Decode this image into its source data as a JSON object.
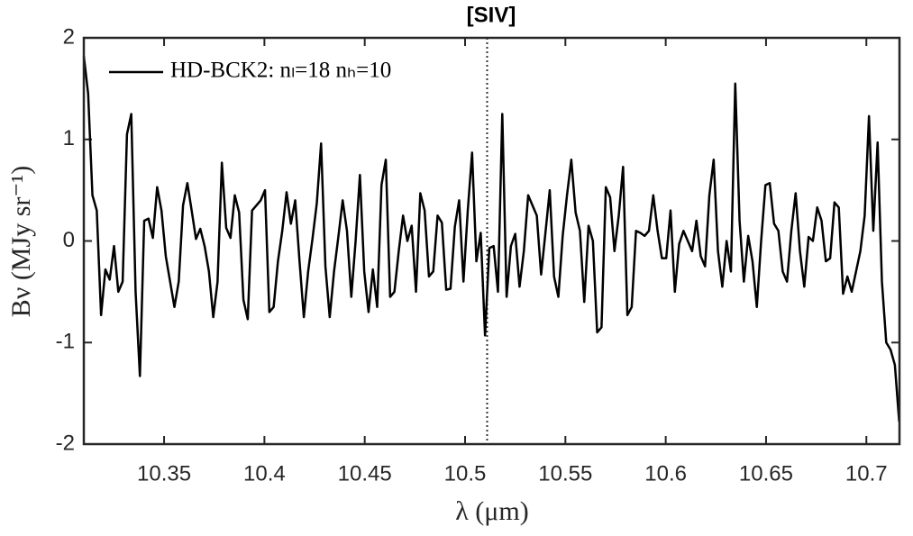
{
  "chart_data": {
    "type": "line",
    "title": "[SIV]",
    "x_label": "λ (μm)",
    "y_label": "Bν (MJy sr⁻¹)",
    "xlim": [
      10.31,
      10.7165
    ],
    "ylim": [
      -2,
      2
    ],
    "xticks": [
      10.35,
      10.4,
      10.45,
      10.5,
      10.55,
      10.6,
      10.65,
      10.7
    ],
    "yticks": [
      -2,
      -1,
      0,
      1,
      2
    ],
    "vline": 10.511,
    "legend": "upper left",
    "x": [
      10.31,
      10.31215,
      10.3143,
      10.31645,
      10.3186,
      10.32075,
      10.3229,
      10.32505,
      10.3272,
      10.32935,
      10.3315,
      10.33365,
      10.3358,
      10.33795,
      10.3401,
      10.34225,
      10.3444,
      10.34655,
      10.3487,
      10.35085,
      10.353,
      10.35515,
      10.3573,
      10.35945,
      10.3616,
      10.36375,
      10.3659,
      10.36805,
      10.3702,
      10.37235,
      10.3745,
      10.37665,
      10.3788,
      10.38095,
      10.3831,
      10.38525,
      10.3874,
      10.38955,
      10.3917,
      10.39385,
      10.396,
      10.39815,
      10.4003,
      10.40245,
      10.4046,
      10.40675,
      10.4089,
      10.41105,
      10.4132,
      10.41535,
      10.4175,
      10.41965,
      10.4218,
      10.42395,
      10.4261,
      10.42825,
      10.4304,
      10.43255,
      10.4347,
      10.43685,
      10.439,
      10.44115,
      10.4433,
      10.44545,
      10.4476,
      10.44975,
      10.4519,
      10.45405,
      10.4562,
      10.45835,
      10.4605,
      10.46265,
      10.4648,
      10.46695,
      10.4691,
      10.47125,
      10.4734,
      10.47555,
      10.4777,
      10.47985,
      10.482,
      10.48415,
      10.4863,
      10.48845,
      10.4906,
      10.49275,
      10.4949,
      10.49705,
      10.4992,
      10.50135,
      10.5035,
      10.50565,
      10.5078,
      10.50995,
      10.5121,
      10.51425,
      10.5164,
      10.51855,
      10.5207,
      10.52285,
      10.525,
      10.52715,
      10.5293,
      10.53145,
      10.5336,
      10.53575,
      10.5379,
      10.54005,
      10.5422,
      10.54435,
      10.5465,
      10.54865,
      10.5508,
      10.55295,
      10.5551,
      10.55725,
      10.5594,
      10.56155,
      10.5637,
      10.56585,
      10.568,
      10.57015,
      10.5723,
      10.57445,
      10.5766,
      10.57875,
      10.5809,
      10.58305,
      10.5852,
      10.58735,
      10.5895,
      10.59165,
      10.5938,
      10.59595,
      10.5981,
      10.60025,
      10.6024,
      10.60455,
      10.6067,
      10.60885,
      10.611,
      10.61315,
      10.6153,
      10.61745,
      10.6196,
      10.62175,
      10.6239,
      10.62605,
      10.6282,
      10.63035,
      10.6325,
      10.63465,
      10.6368,
      10.63895,
      10.6411,
      10.64325,
      10.6454,
      10.64755,
      10.6497,
      10.65185,
      10.654,
      10.65615,
      10.6583,
      10.66045,
      10.6626,
      10.66475,
      10.6669,
      10.66905,
      10.6712,
      10.67335,
      10.6755,
      10.67765,
      10.6798,
      10.68195,
      10.6841,
      10.68625,
      10.6884,
      10.69055,
      10.6927,
      10.69485,
      10.697,
      10.69915,
      10.7013,
      10.70345,
      10.7056,
      10.70775,
      10.7099,
      10.71205,
      10.7142,
      10.71635
    ],
    "series": [
      {
        "name": "HD-BCK2: nₗ=18 nₕ=10",
        "color": "#000000",
        "values": [
          1.82,
          1.45,
          0.45,
          0.3,
          -0.73,
          -0.28,
          -0.38,
          -0.05,
          -0.5,
          -0.4,
          1.05,
          1.25,
          -0.5,
          -1.33,
          0.2,
          0.22,
          0.03,
          0.53,
          0.3,
          -0.15,
          -0.4,
          -0.65,
          -0.4,
          0.35,
          0.57,
          0.3,
          0.02,
          0.12,
          -0.05,
          -0.3,
          -0.75,
          -0.4,
          0.77,
          0.13,
          0.03,
          0.45,
          0.28,
          -0.58,
          -0.77,
          0.3,
          0.35,
          0.4,
          0.5,
          -0.7,
          -0.65,
          -0.2,
          0.1,
          0.48,
          0.17,
          0.4,
          -0.2,
          -0.75,
          -0.3,
          0.02,
          0.37,
          0.96,
          -0.25,
          -0.75,
          -0.3,
          0.04,
          0.4,
          0.1,
          -0.55,
          0.0,
          0.65,
          -0.3,
          -0.7,
          -0.28,
          -0.65,
          0.55,
          0.8,
          -0.55,
          -0.5,
          -0.1,
          0.25,
          0.0,
          0.15,
          -0.5,
          0.47,
          0.3,
          -0.35,
          -0.3,
          0.25,
          0.18,
          -0.48,
          -0.47,
          0.14,
          0.4,
          -0.4,
          0.3,
          0.87,
          -0.2,
          0.08,
          -0.93,
          -0.07,
          -0.05,
          -0.5,
          1.25,
          -0.55,
          -0.05,
          0.07,
          -0.45,
          -0.1,
          0.45,
          0.35,
          0.25,
          -0.33,
          0.08,
          0.5,
          -0.35,
          -0.55,
          0.05,
          0.45,
          0.8,
          0.28,
          0.1,
          -0.6,
          0.15,
          0.0,
          -0.9,
          -0.85,
          0.53,
          0.43,
          -0.1,
          0.25,
          0.73,
          -0.73,
          -0.65,
          0.1,
          0.08,
          0.05,
          0.1,
          0.45,
          0.1,
          -0.17,
          -0.17,
          0.3,
          -0.5,
          -0.03,
          0.1,
          0.0,
          -0.1,
          0.2,
          -0.15,
          -0.25,
          0.45,
          0.8,
          -0.1,
          -0.45,
          0.0,
          -0.3,
          1.55,
          0.2,
          -0.4,
          0.05,
          -0.2,
          -0.65,
          0.0,
          0.55,
          0.57,
          0.17,
          0.1,
          -0.3,
          -0.4,
          0.1,
          0.47,
          -0.1,
          -0.45,
          0.04,
          0.0,
          0.33,
          0.2,
          -0.2,
          -0.17,
          0.38,
          0.33,
          -0.52,
          -0.35,
          -0.5,
          -0.3,
          -0.1,
          0.25,
          1.23,
          0.1,
          0.97,
          -0.4,
          -1.0,
          -1.07,
          -1.22,
          -1.78
        ]
      }
    ]
  }
}
